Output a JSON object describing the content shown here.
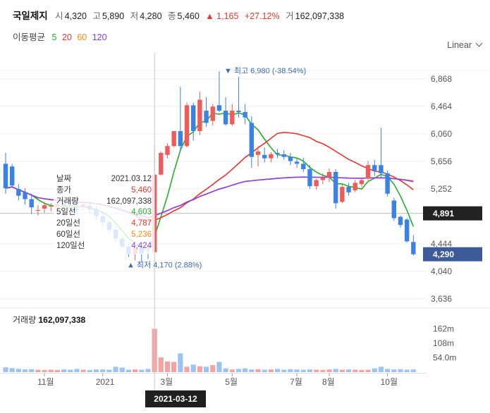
{
  "header": {
    "name": "국일제지",
    "open_label": "시",
    "open": "4,320",
    "high_label": "고",
    "high": "5,890",
    "low_label": "저",
    "low": "4,280",
    "close_label": "종",
    "close": "5,460",
    "change": "▲ 1,165",
    "change_pct": "+27.12%",
    "volume_label": "거",
    "volume": "162,097,338"
  },
  "ma_legend": {
    "label": "이동평균",
    "periods": [
      {
        "text": "5",
        "color": "#22b02c"
      },
      {
        "text": "20",
        "color": "#e8362f"
      },
      {
        "text": "60",
        "color": "#f08c1e"
      },
      {
        "text": "120",
        "color": "#8a3ee6"
      }
    ]
  },
  "scale_selector": "Linear",
  "tooltip": {
    "rows": [
      {
        "label": "날짜",
        "value": "2021.03.12",
        "color": "#333333"
      },
      {
        "label": "종가",
        "value": "5,460",
        "color": "#e8362f"
      },
      {
        "label": "거래량",
        "value": "162,097,338",
        "color": "#333333"
      },
      {
        "label": "5일선",
        "value": "4,603",
        "color": "#22b02c"
      },
      {
        "label": "20일선",
        "value": "4,787",
        "color": "#e8362f"
      },
      {
        "label": "60일선",
        "value": "5,236",
        "color": "#f08c1e"
      },
      {
        "label": "120일선",
        "value": "4,424",
        "color": "#8a3ee6"
      }
    ]
  },
  "volume_title": {
    "label": "거래량",
    "value": "162,097,338"
  },
  "crosshair_date": "2021-03-12",
  "chart_data": {
    "type": "candlestick",
    "price_axis": {
      "ticks": [
        "6,868",
        "6,464",
        "6,060",
        "5,656",
        "5,252",
        "4,444",
        "4,040",
        "3,636"
      ],
      "tick_values": [
        6868,
        6464,
        6060,
        5656,
        5252,
        4444,
        4040,
        3636
      ],
      "range": [
        3500,
        7250
      ]
    },
    "volume_axis": {
      "ticks": [
        "162m",
        "108m",
        "54.0m"
      ],
      "tick_values": [
        162000000,
        108000000,
        54000000
      ],
      "range": [
        0,
        200000000
      ]
    },
    "x_ticks": [
      "11월",
      "2021",
      "3월",
      "5월",
      "7월",
      "8월",
      "10월"
    ],
    "annotations": {
      "high": {
        "text": "최고 6,980 (-38.54%)",
        "value": 6980
      },
      "low": {
        "text": "최저 4,170 (2.88%)",
        "value": 4170
      }
    },
    "price_tags": [
      {
        "text": "4,891",
        "value": 4891,
        "color": "#222222"
      },
      {
        "text": "4,290",
        "value": 4290,
        "color": "#3d5a99"
      }
    ],
    "candles": [
      {
        "o": 5620,
        "h": 5780,
        "l": 5180,
        "c": 5260
      },
      {
        "o": 5580,
        "h": 5620,
        "l": 5280,
        "c": 5300
      },
      {
        "o": 5250,
        "h": 5320,
        "l": 5080,
        "c": 5150
      },
      {
        "o": 5200,
        "h": 5260,
        "l": 5020,
        "c": 5100
      },
      {
        "o": 5100,
        "h": 5180,
        "l": 4880,
        "c": 4980
      },
      {
        "o": 4930,
        "h": 5010,
        "l": 4860,
        "c": 4940
      },
      {
        "o": 4960,
        "h": 5060,
        "l": 4900,
        "c": 5010
      },
      {
        "o": 4990,
        "h": 5040,
        "l": 4920,
        "c": 5000
      },
      {
        "o": 4990,
        "h": 5060,
        "l": 4950,
        "c": 5030
      },
      {
        "o": 5040,
        "h": 5080,
        "l": 4980,
        "c": 5000
      },
      {
        "o": 4980,
        "h": 5050,
        "l": 4920,
        "c": 4960
      },
      {
        "o": 4960,
        "h": 5020,
        "l": 4880,
        "c": 4940
      },
      {
        "o": 4980,
        "h": 5060,
        "l": 4930,
        "c": 5020
      },
      {
        "o": 5000,
        "h": 5050,
        "l": 4900,
        "c": 4950
      },
      {
        "o": 4950,
        "h": 4990,
        "l": 4800,
        "c": 4850
      },
      {
        "o": 4850,
        "h": 4900,
        "l": 4700,
        "c": 4760
      },
      {
        "o": 4760,
        "h": 4810,
        "l": 4600,
        "c": 4650
      },
      {
        "o": 4650,
        "h": 4700,
        "l": 4480,
        "c": 4520
      },
      {
        "o": 4520,
        "h": 4560,
        "l": 4360,
        "c": 4400
      },
      {
        "o": 4400,
        "h": 4460,
        "l": 4250,
        "c": 4300
      },
      {
        "o": 4300,
        "h": 4420,
        "l": 4200,
        "c": 4380
      },
      {
        "o": 4380,
        "h": 4400,
        "l": 4170,
        "c": 4300
      },
      {
        "o": 4300,
        "h": 4420,
        "l": 4220,
        "c": 4295
      },
      {
        "o": 4320,
        "h": 5890,
        "l": 4280,
        "c": 5460
      },
      {
        "o": 5460,
        "h": 5800,
        "l": 5450,
        "c": 5780
      },
      {
        "o": 5750,
        "h": 5920,
        "l": 5700,
        "c": 5880
      },
      {
        "o": 5880,
        "h": 6100,
        "l": 5860,
        "c": 6100
      },
      {
        "o": 6100,
        "h": 6750,
        "l": 5800,
        "c": 5880
      },
      {
        "o": 5880,
        "h": 6520,
        "l": 5860,
        "c": 6480
      },
      {
        "o": 6480,
        "h": 6520,
        "l": 5960,
        "c": 6100
      },
      {
        "o": 6100,
        "h": 6680,
        "l": 6040,
        "c": 6560
      },
      {
        "o": 6400,
        "h": 6600,
        "l": 6160,
        "c": 6220
      },
      {
        "o": 6250,
        "h": 6500,
        "l": 6180,
        "c": 6460
      },
      {
        "o": 6480,
        "h": 6980,
        "l": 6380,
        "c": 6400
      },
      {
        "o": 6400,
        "h": 6600,
        "l": 6180,
        "c": 6200
      },
      {
        "o": 6200,
        "h": 6500,
        "l": 6180,
        "c": 6400
      },
      {
        "o": 6400,
        "h": 6900,
        "l": 6300,
        "c": 6380
      },
      {
        "o": 6380,
        "h": 6500,
        "l": 6200,
        "c": 6300
      },
      {
        "o": 6220,
        "h": 6320,
        "l": 5560,
        "c": 5720
      },
      {
        "o": 5750,
        "h": 5880,
        "l": 5580,
        "c": 5800
      },
      {
        "o": 5750,
        "h": 5860,
        "l": 5640,
        "c": 5700
      },
      {
        "o": 5700,
        "h": 5790,
        "l": 5640,
        "c": 5760
      },
      {
        "o": 5780,
        "h": 5840,
        "l": 5700,
        "c": 5760
      },
      {
        "o": 5760,
        "h": 5820,
        "l": 5680,
        "c": 5720
      },
      {
        "o": 5720,
        "h": 5780,
        "l": 5600,
        "c": 5660
      },
      {
        "o": 5650,
        "h": 5700,
        "l": 5560,
        "c": 5620
      },
      {
        "o": 5620,
        "h": 5710,
        "l": 5500,
        "c": 5540
      },
      {
        "o": 5540,
        "h": 5600,
        "l": 5250,
        "c": 5290
      },
      {
        "o": 5290,
        "h": 5400,
        "l": 5240,
        "c": 5380
      },
      {
        "o": 5380,
        "h": 5480,
        "l": 5320,
        "c": 5420
      },
      {
        "o": 5420,
        "h": 5550,
        "l": 5350,
        "c": 5500
      },
      {
        "o": 5500,
        "h": 5540,
        "l": 4960,
        "c": 5040
      },
      {
        "o": 5060,
        "h": 5320,
        "l": 5040,
        "c": 5280
      },
      {
        "o": 5280,
        "h": 5340,
        "l": 5150,
        "c": 5200
      },
      {
        "o": 5230,
        "h": 5380,
        "l": 5200,
        "c": 5340
      },
      {
        "o": 5320,
        "h": 5400,
        "l": 5280,
        "c": 5380
      },
      {
        "o": 5400,
        "h": 5660,
        "l": 5380,
        "c": 5600
      },
      {
        "o": 5600,
        "h": 5680,
        "l": 5440,
        "c": 5520
      },
      {
        "o": 5600,
        "h": 6150,
        "l": 5420,
        "c": 5480
      },
      {
        "o": 5480,
        "h": 5520,
        "l": 5140,
        "c": 5180
      },
      {
        "o": 5080,
        "h": 5120,
        "l": 4780,
        "c": 4820
      },
      {
        "o": 4840,
        "h": 4860,
        "l": 4680,
        "c": 4720
      },
      {
        "o": 4800,
        "h": 4820,
        "l": 4460,
        "c": 4480
      },
      {
        "o": 4470,
        "h": 4570,
        "l": 4270,
        "c": 4290
      }
    ],
    "volumes": [
      18,
      15,
      12,
      10,
      11,
      9,
      8,
      9,
      8,
      10,
      9,
      12,
      9,
      8,
      10,
      10,
      9,
      20,
      17,
      9,
      10,
      9,
      12,
      162,
      55,
      40,
      38,
      70,
      20,
      28,
      22,
      20,
      26,
      38,
      14,
      10,
      12,
      14,
      10,
      11,
      9,
      10,
      12,
      9,
      11,
      10,
      9,
      10,
      9,
      8,
      10,
      12,
      9,
      10,
      9,
      8,
      9,
      14,
      20,
      12,
      10,
      11,
      9,
      10
    ]
  }
}
